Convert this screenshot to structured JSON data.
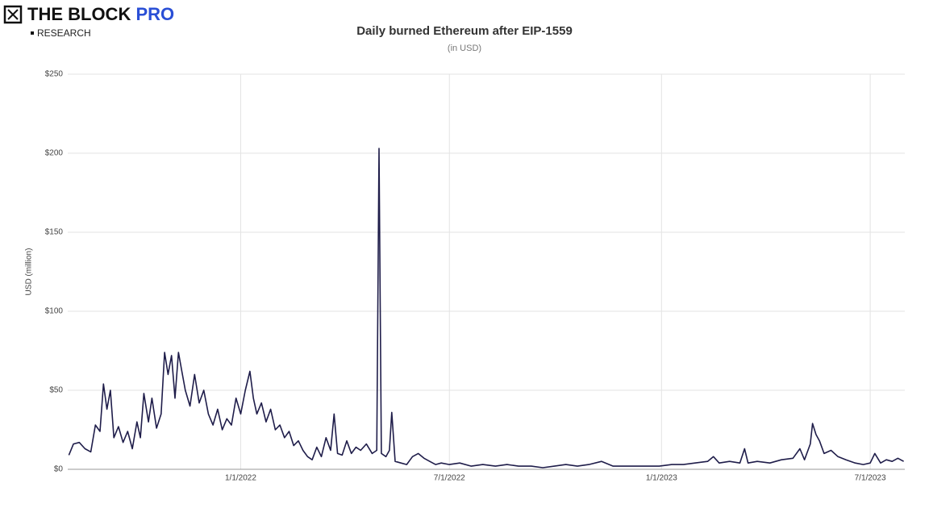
{
  "brand": {
    "name": "THE BLOCK",
    "pro": "PRO",
    "sub": "RESEARCH"
  },
  "chart_data": {
    "type": "line",
    "title": "Daily burned Ethereum after EIP-1559",
    "subtitle": "(in USD)",
    "y_label": "USD (million)",
    "xlim": [
      "2021-08-04",
      "2023-07-31"
    ],
    "xticks": [
      {
        "value": "2022-01-01",
        "label": "1/1/2022"
      },
      {
        "value": "2022-07-01",
        "label": "7/1/2022"
      },
      {
        "value": "2023-01-01",
        "label": "1/1/2023"
      },
      {
        "value": "2023-07-01",
        "label": "7/1/2023"
      }
    ],
    "ylim": [
      0,
      250
    ],
    "yticks": [
      {
        "value": 0,
        "label": "$0"
      },
      {
        "value": 50,
        "label": "$50"
      },
      {
        "value": 100,
        "label": "$100"
      },
      {
        "value": 150,
        "label": "$150"
      },
      {
        "value": 200,
        "label": "$200"
      },
      {
        "value": 250,
        "label": "$250"
      }
    ],
    "grid": true,
    "series": [
      {
        "name": "Daily burned Ethereum",
        "color": "#1f1d4a",
        "x": [
          "2021-08-05",
          "2021-08-09",
          "2021-08-14",
          "2021-08-19",
          "2021-08-24",
          "2021-08-28",
          "2021-09-01",
          "2021-09-04",
          "2021-09-07",
          "2021-09-10",
          "2021-09-13",
          "2021-09-17",
          "2021-09-21",
          "2021-09-25",
          "2021-09-29",
          "2021-10-03",
          "2021-10-06",
          "2021-10-09",
          "2021-10-13",
          "2021-10-16",
          "2021-10-20",
          "2021-10-24",
          "2021-10-27",
          "2021-10-30",
          "2021-11-02",
          "2021-11-05",
          "2021-11-08",
          "2021-11-11",
          "2021-11-14",
          "2021-11-18",
          "2021-11-22",
          "2021-11-26",
          "2021-11-30",
          "2021-12-04",
          "2021-12-08",
          "2021-12-12",
          "2021-12-16",
          "2021-12-20",
          "2021-12-24",
          "2021-12-28",
          "2022-01-01",
          "2022-01-05",
          "2022-01-09",
          "2022-01-12",
          "2022-01-15",
          "2022-01-19",
          "2022-01-23",
          "2022-01-27",
          "2022-01-31",
          "2022-02-04",
          "2022-02-08",
          "2022-02-12",
          "2022-02-16",
          "2022-02-20",
          "2022-02-24",
          "2022-02-28",
          "2022-03-04",
          "2022-03-08",
          "2022-03-12",
          "2022-03-16",
          "2022-03-20",
          "2022-03-23",
          "2022-03-26",
          "2022-03-30",
          "2022-04-03",
          "2022-04-07",
          "2022-04-11",
          "2022-04-15",
          "2022-04-20",
          "2022-04-25",
          "2022-04-29",
          "2022-05-01",
          "2022-05-03",
          "2022-05-07",
          "2022-05-10",
          "2022-05-12",
          "2022-05-15",
          "2022-05-20",
          "2022-05-25",
          "2022-05-30",
          "2022-06-04",
          "2022-06-09",
          "2022-06-14",
          "2022-06-19",
          "2022-06-24",
          "2022-07-01",
          "2022-07-10",
          "2022-07-20",
          "2022-07-30",
          "2022-08-10",
          "2022-08-20",
          "2022-08-30",
          "2022-09-10",
          "2022-09-20",
          "2022-09-30",
          "2022-10-10",
          "2022-10-20",
          "2022-10-30",
          "2022-11-10",
          "2022-11-20",
          "2022-11-30",
          "2022-12-10",
          "2022-12-20",
          "2022-12-30",
          "2023-01-10",
          "2023-01-20",
          "2023-01-30",
          "2023-02-10",
          "2023-02-15",
          "2023-02-20",
          "2023-03-01",
          "2023-03-10",
          "2023-03-14",
          "2023-03-17",
          "2023-03-25",
          "2023-04-05",
          "2023-04-15",
          "2023-04-25",
          "2023-05-01",
          "2023-05-05",
          "2023-05-10",
          "2023-05-12",
          "2023-05-15",
          "2023-05-18",
          "2023-05-22",
          "2023-05-28",
          "2023-06-03",
          "2023-06-10",
          "2023-06-18",
          "2023-06-25",
          "2023-07-01",
          "2023-07-05",
          "2023-07-10",
          "2023-07-15",
          "2023-07-20",
          "2023-07-25",
          "2023-07-30"
        ],
        "values": [
          9,
          16,
          17,
          13,
          11,
          28,
          24,
          54,
          38,
          50,
          20,
          27,
          17,
          24,
          13,
          30,
          20,
          48,
          30,
          45,
          26,
          35,
          74,
          60,
          72,
          45,
          74,
          62,
          50,
          40,
          60,
          42,
          50,
          35,
          28,
          38,
          25,
          32,
          28,
          45,
          35,
          50,
          62,
          45,
          35,
          42,
          30,
          38,
          25,
          28,
          20,
          24,
          15,
          18,
          12,
          8,
          6,
          14,
          8,
          20,
          12,
          35,
          10,
          9,
          18,
          10,
          14,
          12,
          16,
          10,
          12,
          203,
          10,
          8,
          12,
          36,
          5,
          4,
          3,
          8,
          10,
          7,
          5,
          3,
          4,
          3,
          4,
          2,
          3,
          2,
          3,
          2,
          2,
          1,
          2,
          3,
          2,
          3,
          5,
          2,
          2,
          2,
          2,
          2,
          3,
          3,
          4,
          5,
          8,
          4,
          5,
          4,
          13,
          4,
          5,
          4,
          6,
          7,
          13,
          6,
          16,
          29,
          22,
          18,
          10,
          12,
          8,
          6,
          4,
          3,
          4,
          10,
          4,
          6,
          5,
          7,
          5
        ]
      }
    ]
  }
}
